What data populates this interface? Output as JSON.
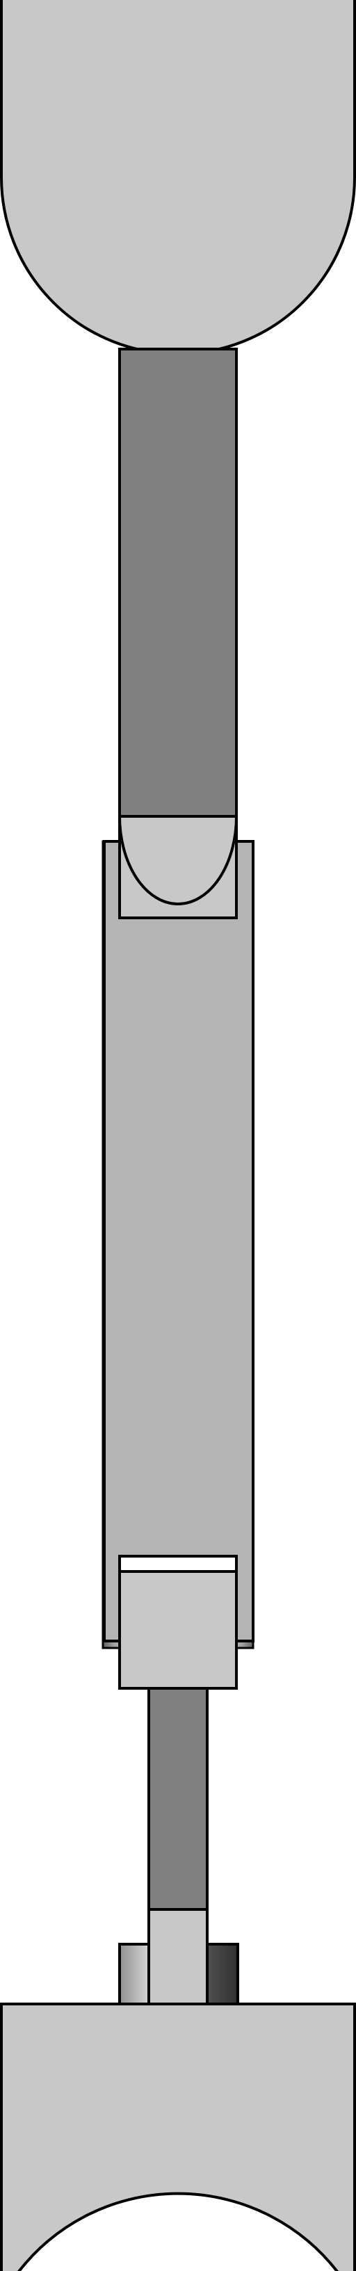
{
  "diagram": {
    "colors": {
      "background": "#ffffff",
      "outline": "#000000",
      "light_gray": "#c8c8c8",
      "medium_gray": "#b4b4b4",
      "dark_gray": "#808080",
      "band_white": "#ffffff"
    },
    "parts": [
      "top-rounded-cap",
      "upper-rod",
      "upper-rod-rounded-end",
      "upper-housing-slot",
      "middle-body",
      "bottom-housing-block",
      "white-band",
      "lower-rod",
      "lower-collar",
      "bottom-curved-base"
    ]
  }
}
